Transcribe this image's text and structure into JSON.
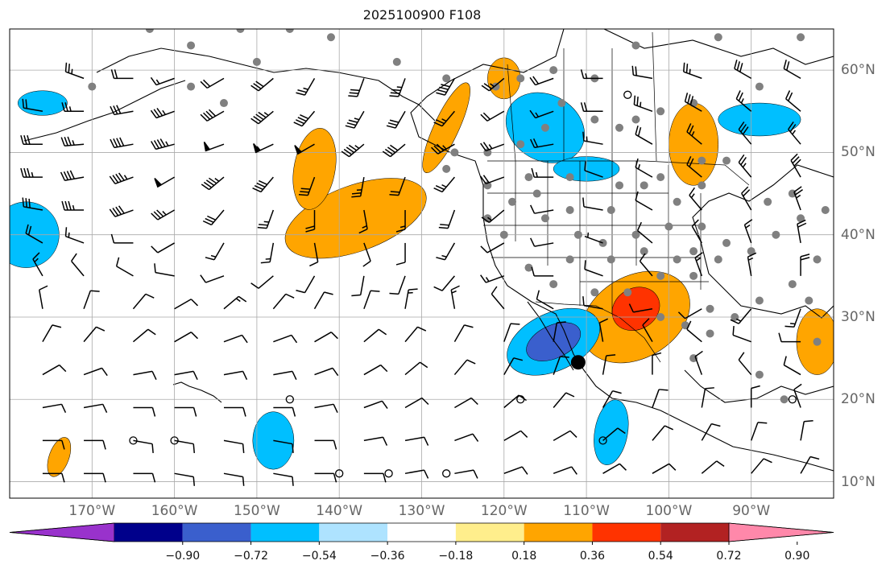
{
  "title": "2025100900 F108",
  "map": {
    "lon_range": [
      -180,
      -80
    ],
    "lat_range": [
      8,
      65
    ],
    "gridlines": true,
    "colors": {
      "land_border": "#000000",
      "grid": "#a9a9a9",
      "station_dot": "#808080",
      "barb": "#000000"
    },
    "lon_labels": [
      "170°W",
      "160°W",
      "150°W",
      "140°W",
      "130°W",
      "120°W",
      "110°W",
      "100°W",
      "90°W"
    ],
    "lat_labels": [
      "60°N",
      "50°N",
      "40°N",
      "30°N",
      "20°N",
      "10°N"
    ]
  },
  "colorbar": {
    "colors": [
      "#9932cc",
      "#00008b",
      "#3a5fcd",
      "#00bfff",
      "#aee3ff",
      "#ffffff",
      "#ffee8c",
      "#ffa500",
      "#ff3300",
      "#b22222",
      "#ff88aa"
    ],
    "ticks": [
      "−0.90",
      "−0.72",
      "−0.54",
      "−0.36",
      "−0.18",
      "0.18",
      "0.36",
      "0.54",
      "0.72",
      "0.90"
    ],
    "extend": "both"
  },
  "stations": [
    [
      -163,
      65
    ],
    [
      -158,
      63
    ],
    [
      -152,
      65
    ],
    [
      -146,
      65
    ],
    [
      -141,
      64
    ],
    [
      -133,
      61
    ],
    [
      -127,
      59
    ],
    [
      -121,
      58
    ],
    [
      -118,
      59
    ],
    [
      -114,
      60
    ],
    [
      -109,
      59
    ],
    [
      -104,
      63
    ],
    [
      -94,
      64
    ],
    [
      -84,
      64
    ],
    [
      -89,
      58
    ],
    [
      -97,
      56
    ],
    [
      -101,
      55
    ],
    [
      -104,
      54
    ],
    [
      -106,
      53
    ],
    [
      -109,
      54
    ],
    [
      -113,
      56
    ],
    [
      -115,
      53
    ],
    [
      -118,
      51
    ],
    [
      -122,
      50
    ],
    [
      -126,
      50
    ],
    [
      -127,
      48
    ],
    [
      -122,
      46
    ],
    [
      -117,
      47
    ],
    [
      -112,
      47
    ],
    [
      -106,
      46
    ],
    [
      -101,
      47
    ],
    [
      -96,
      49
    ],
    [
      -93,
      49
    ],
    [
      -96,
      46
    ],
    [
      -99,
      44
    ],
    [
      -103,
      46
    ],
    [
      -107,
      43
    ],
    [
      -112,
      43
    ],
    [
      -116,
      45
    ],
    [
      -119,
      44
    ],
    [
      -122,
      42
    ],
    [
      -120,
      40
    ],
    [
      -115,
      42
    ],
    [
      -111,
      40
    ],
    [
      -108,
      39
    ],
    [
      -104,
      40
    ],
    [
      -100,
      41
    ],
    [
      -96,
      41
    ],
    [
      -93,
      39
    ],
    [
      -97,
      38
    ],
    [
      -99,
      37
    ],
    [
      -103,
      38
    ],
    [
      -107,
      37
    ],
    [
      -112,
      37
    ],
    [
      -117,
      36
    ],
    [
      -114,
      34
    ],
    [
      -109,
      33
    ],
    [
      -105,
      33
    ],
    [
      -101,
      35
    ],
    [
      -97,
      35
    ],
    [
      -94,
      37
    ],
    [
      -90,
      38
    ],
    [
      -87,
      40
    ],
    [
      -84,
      42
    ],
    [
      -88,
      44
    ],
    [
      -85,
      45
    ],
    [
      -81,
      43
    ],
    [
      -82,
      37
    ],
    [
      -85,
      34
    ],
    [
      -89,
      32
    ],
    [
      -92,
      30
    ],
    [
      -95,
      31
    ],
    [
      -98,
      29
    ],
    [
      -101,
      30
    ],
    [
      -95,
      28
    ],
    [
      -97,
      25
    ],
    [
      -89,
      23
    ],
    [
      -86,
      20
    ],
    [
      -82,
      27
    ],
    [
      -83,
      32
    ],
    [
      -170,
      58
    ],
    [
      -154,
      56
    ],
    [
      -158,
      58
    ],
    [
      -150,
      61
    ]
  ],
  "calm_points": [
    [
      -165,
      15
    ],
    [
      -160,
      15
    ],
    [
      -146,
      20
    ],
    [
      -140,
      11
    ],
    [
      -134,
      11
    ],
    [
      -127,
      11
    ],
    [
      -118,
      20
    ],
    [
      -108,
      15
    ],
    [
      -105,
      57
    ],
    [
      -85,
      20
    ]
  ],
  "big_dot": [
    -111,
    24.5
  ],
  "barbs": [
    [
      -171,
      59,
      290,
      25
    ],
    [
      -165,
      59,
      270,
      20
    ],
    [
      -160,
      59,
      250,
      15
    ],
    [
      -154,
      59,
      240,
      20
    ],
    [
      -148,
      59,
      230,
      30
    ],
    [
      -143,
      59,
      210,
      25
    ],
    [
      -137,
      59,
      200,
      30
    ],
    [
      -132,
      59,
      200,
      35
    ],
    [
      -126,
      59,
      210,
      40
    ],
    [
      -120,
      59,
      230,
      25
    ],
    [
      -114,
      59,
      250,
      20
    ],
    [
      -108,
      59,
      270,
      15
    ],
    [
      -102,
      59,
      280,
      20
    ],
    [
      -96,
      59,
      290,
      25
    ],
    [
      -90,
      59,
      300,
      30
    ],
    [
      -84,
      59,
      300,
      20
    ],
    [
      -176,
      55,
      280,
      20
    ],
    [
      -171,
      55,
      270,
      25
    ],
    [
      -165,
      55,
      260,
      30
    ],
    [
      -160,
      55,
      250,
      35
    ],
    [
      -154,
      55,
      240,
      40
    ],
    [
      -148,
      55,
      230,
      45
    ],
    [
      -143,
      55,
      220,
      40
    ],
    [
      -137,
      55,
      210,
      35
    ],
    [
      -132,
      55,
      210,
      30
    ],
    [
      -126,
      55,
      220,
      25
    ],
    [
      -120,
      55,
      240,
      20
    ],
    [
      -114,
      55,
      250,
      15
    ],
    [
      -108,
      55,
      270,
      20
    ],
    [
      -102,
      55,
      290,
      25
    ],
    [
      -96,
      55,
      300,
      30
    ],
    [
      -90,
      55,
      310,
      25
    ],
    [
      -84,
      55,
      310,
      20
    ],
    [
      -176,
      51,
      270,
      30
    ],
    [
      -171,
      51,
      265,
      35
    ],
    [
      -165,
      51,
      260,
      40
    ],
    [
      -160,
      51,
      255,
      45
    ],
    [
      -154,
      51,
      250,
      50
    ],
    [
      -148,
      51,
      245,
      55
    ],
    [
      -143,
      51,
      240,
      50
    ],
    [
      -137,
      51,
      230,
      45
    ],
    [
      -132,
      51,
      230,
      40
    ],
    [
      -126,
      51,
      240,
      35
    ],
    [
      -120,
      51,
      250,
      25
    ],
    [
      -114,
      51,
      260,
      20
    ],
    [
      -108,
      51,
      280,
      15
    ],
    [
      -102,
      51,
      300,
      20
    ],
    [
      -96,
      51,
      310,
      25
    ],
    [
      -90,
      51,
      320,
      30
    ],
    [
      -84,
      51,
      320,
      25
    ],
    [
      -176,
      47,
      270,
      35
    ],
    [
      -171,
      47,
      260,
      40
    ],
    [
      -165,
      47,
      250,
      45
    ],
    [
      -160,
      47,
      240,
      50
    ],
    [
      -154,
      47,
      230,
      45
    ],
    [
      -148,
      47,
      220,
      40
    ],
    [
      -143,
      47,
      200,
      30
    ],
    [
      -137,
      47,
      190,
      25
    ],
    [
      -132,
      47,
      200,
      20
    ],
    [
      -126,
      47,
      220,
      25
    ],
    [
      -120,
      47,
      250,
      20
    ],
    [
      -114,
      47,
      270,
      15
    ],
    [
      -108,
      47,
      290,
      10
    ],
    [
      -102,
      47,
      300,
      15
    ],
    [
      -96,
      47,
      310,
      20
    ],
    [
      -90,
      47,
      320,
      25
    ],
    [
      -84,
      47,
      330,
      30
    ],
    [
      -176,
      43,
      280,
      30
    ],
    [
      -171,
      43,
      270,
      35
    ],
    [
      -165,
      43,
      250,
      40
    ],
    [
      -160,
      43,
      240,
      35
    ],
    [
      -154,
      43,
      220,
      30
    ],
    [
      -148,
      43,
      200,
      25
    ],
    [
      -143,
      43,
      180,
      20
    ],
    [
      -137,
      43,
      170,
      15
    ],
    [
      -132,
      43,
      180,
      15
    ],
    [
      -126,
      43,
      200,
      20
    ],
    [
      -120,
      43,
      230,
      15
    ],
    [
      -114,
      43,
      260,
      10
    ],
    [
      -108,
      43,
      280,
      10
    ],
    [
      -102,
      43,
      300,
      10
    ],
    [
      -96,
      43,
      320,
      15
    ],
    [
      -90,
      43,
      330,
      20
    ],
    [
      -84,
      43,
      340,
      25
    ],
    [
      -176,
      39,
      300,
      20
    ],
    [
      -171,
      39,
      290,
      15
    ],
    [
      -165,
      39,
      270,
      10
    ],
    [
      -160,
      39,
      240,
      10
    ],
    [
      -154,
      39,
      210,
      15
    ],
    [
      -148,
      39,
      190,
      15
    ],
    [
      -143,
      39,
      170,
      10
    ],
    [
      -137,
      39,
      160,
      10
    ],
    [
      -132,
      39,
      180,
      10
    ],
    [
      -126,
      39,
      210,
      15
    ],
    [
      -120,
      39,
      240,
      10
    ],
    [
      -114,
      39,
      260,
      10
    ],
    [
      -108,
      39,
      290,
      5
    ],
    [
      -102,
      39,
      310,
      10
    ],
    [
      -96,
      39,
      330,
      10
    ],
    [
      -90,
      39,
      340,
      15
    ],
    [
      -84,
      39,
      350,
      20
    ],
    [
      -176,
      35,
      330,
      15
    ],
    [
      -171,
      35,
      320,
      10
    ],
    [
      -165,
      35,
      300,
      10
    ],
    [
      -160,
      35,
      280,
      10
    ],
    [
      -154,
      35,
      250,
      10
    ],
    [
      -148,
      35,
      230,
      10
    ],
    [
      -143,
      35,
      210,
      10
    ],
    [
      -137,
      35,
      190,
      10
    ],
    [
      -132,
      35,
      200,
      10
    ],
    [
      -126,
      35,
      220,
      10
    ],
    [
      -120,
      35,
      250,
      15
    ],
    [
      -114,
      35,
      270,
      10
    ],
    [
      -108,
      35,
      290,
      10
    ],
    [
      -102,
      35,
      320,
      10
    ],
    [
      -96,
      35,
      340,
      15
    ],
    [
      -90,
      35,
      350,
      15
    ],
    [
      -84,
      35,
      0,
      20
    ],
    [
      -176,
      31,
      350,
      10
    ],
    [
      -171,
      31,
      20,
      10
    ],
    [
      -165,
      31,
      40,
      10
    ],
    [
      -160,
      31,
      60,
      10
    ],
    [
      -154,
      31,
      50,
      15
    ],
    [
      -148,
      31,
      40,
      10
    ],
    [
      -143,
      31,
      30,
      10
    ],
    [
      -137,
      31,
      20,
      10
    ],
    [
      -132,
      31,
      10,
      15
    ],
    [
      -126,
      31,
      350,
      15
    ],
    [
      -120,
      31,
      320,
      10
    ],
    [
      -114,
      31,
      300,
      10
    ],
    [
      -108,
      31,
      280,
      10
    ],
    [
      -102,
      31,
      260,
      10
    ],
    [
      -96,
      31,
      240,
      10
    ],
    [
      -90,
      31,
      220,
      15
    ],
    [
      -84,
      31,
      200,
      15
    ],
    [
      -176,
      27,
      30,
      10
    ],
    [
      -171,
      27,
      40,
      10
    ],
    [
      -165,
      27,
      50,
      10
    ],
    [
      -160,
      27,
      60,
      10
    ],
    [
      -154,
      27,
      70,
      10
    ],
    [
      -148,
      27,
      70,
      10
    ],
    [
      -143,
      27,
      60,
      10
    ],
    [
      -137,
      27,
      50,
      10
    ],
    [
      -132,
      27,
      40,
      10
    ],
    [
      -126,
      27,
      30,
      10
    ],
    [
      -120,
      27,
      20,
      10
    ],
    [
      -114,
      27,
      10,
      10
    ],
    [
      -108,
      27,
      350,
      10
    ],
    [
      -102,
      27,
      330,
      10
    ],
    [
      -96,
      27,
      310,
      10
    ],
    [
      -90,
      27,
      290,
      10
    ],
    [
      -84,
      27,
      270,
      10
    ],
    [
      -176,
      23,
      60,
      10
    ],
    [
      -171,
      23,
      70,
      10
    ],
    [
      -165,
      23,
      80,
      10
    ],
    [
      -160,
      23,
      80,
      10
    ],
    [
      -154,
      23,
      80,
      10
    ],
    [
      -148,
      23,
      80,
      10
    ],
    [
      -143,
      23,
      70,
      10
    ],
    [
      -137,
      23,
      60,
      10
    ],
    [
      -132,
      23,
      50,
      10
    ],
    [
      -126,
      23,
      40,
      10
    ],
    [
      -120,
      23,
      30,
      10
    ],
    [
      -114,
      23,
      20,
      10
    ],
    [
      -108,
      23,
      10,
      10
    ],
    [
      -102,
      23,
      0,
      10
    ],
    [
      -96,
      23,
      340,
      10
    ],
    [
      -90,
      23,
      320,
      10
    ],
    [
      -84,
      23,
      300,
      10
    ],
    [
      -176,
      19,
      80,
      10
    ],
    [
      -171,
      19,
      80,
      10
    ],
    [
      -165,
      19,
      90,
      10
    ],
    [
      -160,
      19,
      90,
      10
    ],
    [
      -154,
      19,
      90,
      10
    ],
    [
      -148,
      19,
      90,
      10
    ],
    [
      -143,
      19,
      80,
      10
    ],
    [
      -137,
      19,
      70,
      10
    ],
    [
      -132,
      19,
      60,
      10
    ],
    [
      -126,
      19,
      60,
      10
    ],
    [
      -120,
      19,
      50,
      10
    ],
    [
      -114,
      19,
      40,
      10
    ],
    [
      -108,
      19,
      30,
      10
    ],
    [
      -102,
      19,
      20,
      10
    ],
    [
      -96,
      19,
      10,
      10
    ],
    [
      -90,
      19,
      0,
      10
    ],
    [
      -84,
      19,
      340,
      10
    ],
    [
      -176,
      15,
      90,
      10
    ],
    [
      -171,
      15,
      90,
      10
    ],
    [
      -165,
      15,
      100,
      10
    ],
    [
      -160,
      15,
      100,
      10
    ],
    [
      -154,
      15,
      100,
      10
    ],
    [
      -148,
      15,
      100,
      10
    ],
    [
      -143,
      15,
      90,
      10
    ],
    [
      -137,
      15,
      80,
      10
    ],
    [
      -132,
      15,
      80,
      10
    ],
    [
      -126,
      15,
      70,
      10
    ],
    [
      -120,
      15,
      60,
      10
    ],
    [
      -114,
      15,
      60,
      10
    ],
    [
      -108,
      15,
      50,
      10
    ],
    [
      -102,
      15,
      40,
      10
    ],
    [
      -96,
      15,
      30,
      10
    ],
    [
      -90,
      15,
      20,
      10
    ],
    [
      -84,
      15,
      10,
      10
    ],
    [
      -176,
      11,
      90,
      10
    ],
    [
      -171,
      11,
      90,
      10
    ],
    [
      -165,
      11,
      90,
      10
    ],
    [
      -160,
      11,
      100,
      10
    ],
    [
      -154,
      11,
      100,
      10
    ],
    [
      -148,
      11,
      100,
      10
    ],
    [
      -143,
      11,
      90,
      10
    ],
    [
      -137,
      11,
      90,
      10
    ],
    [
      -132,
      11,
      80,
      10
    ],
    [
      -126,
      11,
      80,
      10
    ],
    [
      -120,
      11,
      70,
      10
    ],
    [
      -114,
      11,
      70,
      10
    ],
    [
      -108,
      11,
      60,
      10
    ],
    [
      -102,
      11,
      60,
      10
    ],
    [
      -96,
      11,
      50,
      10
    ],
    [
      -90,
      11,
      40,
      10
    ],
    [
      -84,
      11,
      30,
      10
    ]
  ],
  "contour_blobs": [
    {
      "level": "#ffa500",
      "center": [
        -138,
        42
      ],
      "rx": 9,
      "ry": 4,
      "rot": -20
    },
    {
      "level": "#ffa500",
      "center": [
        -143,
        48
      ],
      "rx": 2.5,
      "ry": 5,
      "rot": 10
    },
    {
      "level": "#ffa500",
      "center": [
        -127,
        53
      ],
      "rx": 1.5,
      "ry": 6,
      "rot": 25
    },
    {
      "level": "#ffa500",
      "center": [
        -120,
        59
      ],
      "rx": 2,
      "ry": 2.5,
      "rot": 0
    },
    {
      "level": "#ffa500",
      "center": [
        -104,
        30
      ],
      "rx": 7,
      "ry": 5,
      "rot": -30
    },
    {
      "level": "#ff3300",
      "center": [
        -104,
        31
      ],
      "rx": 3,
      "ry": 2.5,
      "rot": -30
    },
    {
      "level": "#ffa500",
      "center": [
        -97,
        51
      ],
      "rx": 3,
      "ry": 5,
      "rot": 0
    },
    {
      "level": "#ffa500",
      "center": [
        -82,
        27
      ],
      "rx": 2.5,
      "ry": 4,
      "rot": 0
    },
    {
      "level": "#ffa500",
      "center": [
        -174,
        13
      ],
      "rx": 1.2,
      "ry": 2.5,
      "rot": 20
    },
    {
      "level": "#00bfff",
      "center": [
        -178,
        40
      ],
      "rx": 4,
      "ry": 4,
      "rot": 0
    },
    {
      "level": "#00bfff",
      "center": [
        -176,
        56
      ],
      "rx": 3,
      "ry": 1.5,
      "rot": 0
    },
    {
      "level": "#00bfff",
      "center": [
        -114,
        27
      ],
      "rx": 6,
      "ry": 3.5,
      "rot": -25
    },
    {
      "level": "#3a5fcd",
      "center": [
        -114,
        27
      ],
      "rx": 3.5,
      "ry": 2,
      "rot": -25
    },
    {
      "level": "#00bfff",
      "center": [
        -115,
        53
      ],
      "rx": 5,
      "ry": 4,
      "rot": 30
    },
    {
      "level": "#00bfff",
      "center": [
        -110,
        48
      ],
      "rx": 4,
      "ry": 1.5,
      "rot": 0
    },
    {
      "level": "#00bfff",
      "center": [
        -89,
        54
      ],
      "rx": 5,
      "ry": 2,
      "rot": 0
    },
    {
      "level": "#00bfff",
      "center": [
        -148,
        15
      ],
      "rx": 2.5,
      "ry": 3.5,
      "rot": 0
    },
    {
      "level": "#00bfff",
      "center": [
        -107,
        16
      ],
      "rx": 2,
      "ry": 4,
      "rot": 10
    }
  ]
}
